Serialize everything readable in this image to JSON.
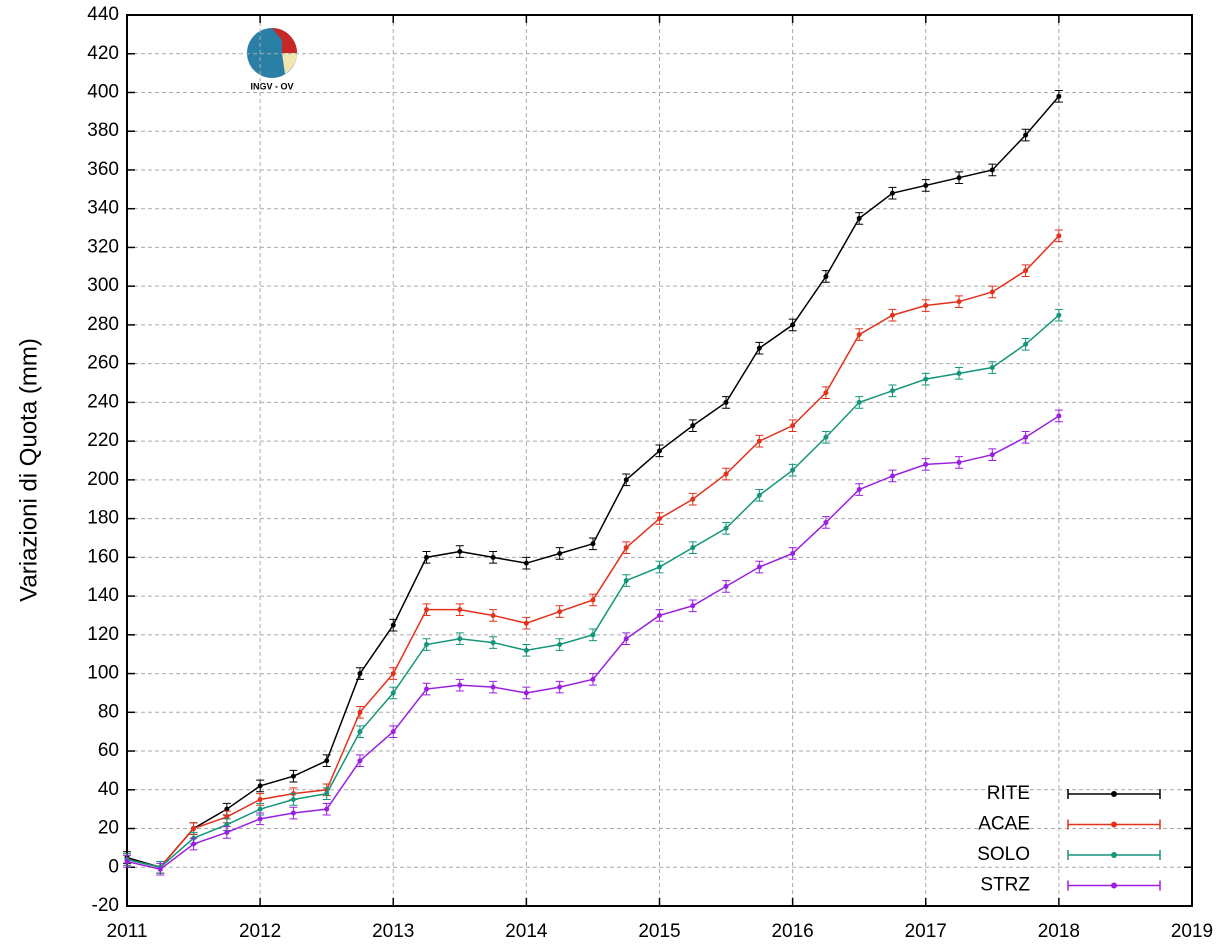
{
  "chart_data": {
    "type": "line",
    "ylabel": "Variazioni di Quota (mm)",
    "logo_text": "INGV - OV",
    "x": [
      2011.0,
      2011.25,
      2011.5,
      2011.75,
      2012.0,
      2012.25,
      2012.5,
      2012.75,
      2013.0,
      2013.25,
      2013.5,
      2013.75,
      2014.0,
      2014.25,
      2014.5,
      2014.75,
      2015.0,
      2015.25,
      2015.5,
      2015.75,
      2016.0,
      2016.25,
      2016.5,
      2016.75,
      2017.0,
      2017.25,
      2017.5,
      2017.75,
      2018.0
    ],
    "series": [
      {
        "name": "RITE",
        "color": "#000000",
        "yerr": 3,
        "values": [
          5,
          0,
          20,
          30,
          42,
          47,
          55,
          100,
          125,
          160,
          163,
          160,
          157,
          162,
          167,
          200,
          215,
          228,
          240,
          268,
          280,
          305,
          335,
          348,
          352,
          356,
          360,
          378,
          398
        ]
      },
      {
        "name": "ACAE",
        "color": "#e3321c",
        "yerr": 3,
        "values": [
          4,
          0,
          20,
          26,
          35,
          38,
          40,
          80,
          100,
          133,
          133,
          130,
          126,
          132,
          138,
          165,
          180,
          190,
          203,
          220,
          228,
          245,
          275,
          285,
          290,
          292,
          297,
          308,
          326
        ]
      },
      {
        "name": "SOLO",
        "color": "#13967a",
        "yerr": 3,
        "values": [
          4,
          0,
          15,
          22,
          30,
          35,
          38,
          70,
          90,
          115,
          118,
          116,
          112,
          115,
          120,
          148,
          155,
          165,
          175,
          192,
          205,
          222,
          240,
          246,
          252,
          255,
          258,
          270,
          285
        ]
      },
      {
        "name": "STRZ",
        "color": "#9b1fe0",
        "yerr": 3,
        "values": [
          3,
          -1,
          12,
          18,
          25,
          28,
          30,
          55,
          70,
          92,
          94,
          93,
          90,
          93,
          97,
          118,
          130,
          135,
          145,
          155,
          162,
          178,
          195,
          202,
          208,
          209,
          213,
          222,
          233
        ]
      }
    ],
    "xlim": [
      2011,
      2019
    ],
    "xticks": [
      2011,
      2012,
      2013,
      2014,
      2015,
      2016,
      2017,
      2018,
      2019
    ],
    "ylim": [
      -20,
      440
    ],
    "yticks": [
      -20,
      0,
      20,
      40,
      60,
      80,
      100,
      120,
      140,
      160,
      180,
      200,
      220,
      240,
      260,
      280,
      300,
      320,
      340,
      360,
      380,
      400,
      420,
      440
    ],
    "grid": true,
    "legend": "bottom-right"
  }
}
